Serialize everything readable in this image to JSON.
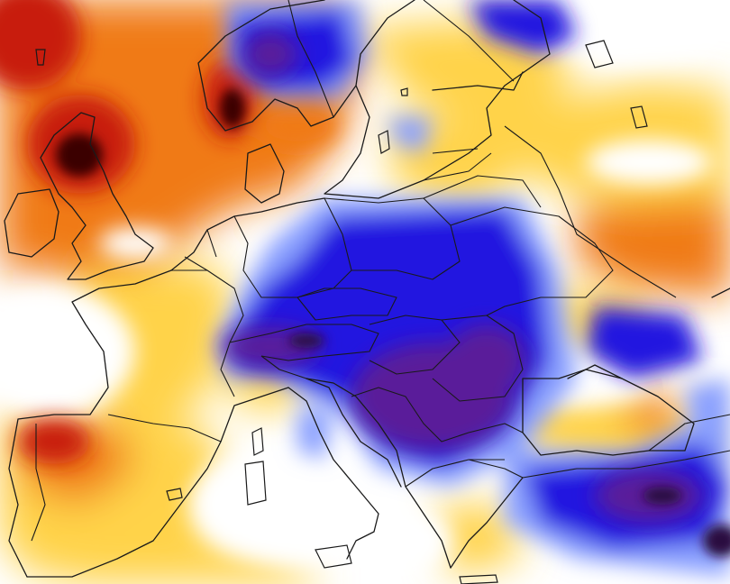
{
  "map": {
    "type": "anomaly-heatmap",
    "region": "Europe",
    "color_scale": {
      "dark_positive": "#3a0000",
      "strong_positive": "#c81e0a",
      "positive": "#f07a14",
      "weak_positive": "#ffd34a",
      "neutral": "#ffffff",
      "weak_negative": "#8aa0ff",
      "negative": "#2018e0",
      "strong_negative": "#5a1a9a",
      "dark_negative": "#2a0b40"
    },
    "legend": null,
    "title": ""
  }
}
